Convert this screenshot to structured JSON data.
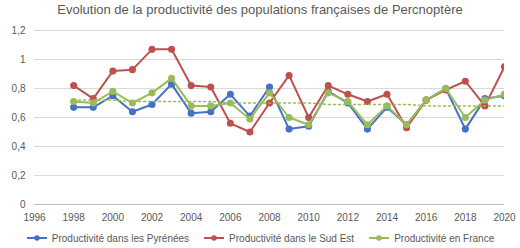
{
  "chart_data": {
    "type": "line",
    "title": "Evolution de la productivité des populations françaises de Percnoptère",
    "x": [
      1998,
      1999,
      2000,
      2001,
      2002,
      2003,
      2004,
      2005,
      2006,
      2007,
      2008,
      2009,
      2010,
      2011,
      2012,
      2013,
      2014,
      2015,
      2016,
      2017,
      2018,
      2019,
      2020
    ],
    "series": [
      {
        "name": "Productivité dans les Pyrénées",
        "color": "#4472c4",
        "marker": "circle",
        "values": [
          0.67,
          0.67,
          0.75,
          0.64,
          0.69,
          0.83,
          0.63,
          0.64,
          0.76,
          0.61,
          0.81,
          0.52,
          0.54,
          0.78,
          0.7,
          0.52,
          0.67,
          0.55,
          0.72,
          0.8,
          0.52,
          0.73,
          0.75
        ]
      },
      {
        "name": "Productivité dans le Sud Est",
        "color": "#c0504d",
        "marker": "circle",
        "values": [
          0.82,
          0.73,
          0.92,
          0.93,
          1.07,
          1.07,
          0.82,
          0.81,
          0.56,
          0.5,
          0.7,
          0.89,
          0.6,
          0.82,
          0.76,
          0.71,
          0.76,
          0.53,
          0.72,
          0.79,
          0.85,
          0.68,
          0.95
        ]
      },
      {
        "name": "Productivité en France",
        "color": "#9bbb59",
        "marker": "circle",
        "values": [
          0.71,
          0.7,
          0.78,
          0.7,
          0.77,
          0.87,
          0.68,
          0.68,
          0.7,
          0.59,
          0.77,
          0.6,
          0.55,
          0.77,
          0.71,
          0.55,
          0.68,
          0.55,
          0.72,
          0.8,
          0.6,
          0.72,
          0.76
        ]
      },
      {
        "color": "#9bbb59",
        "line_style": "dotted",
        "values": [
          0.72,
          0.72,
          0.72,
          0.71,
          0.71,
          0.71,
          0.71,
          0.71,
          0.7,
          0.7,
          0.7,
          0.7,
          0.7,
          0.69,
          0.69,
          0.69,
          0.69,
          0.69,
          0.68,
          0.68,
          0.68,
          0.68,
          0.68
        ]
      }
    ],
    "xlim": [
      1996,
      2020
    ],
    "xticks": [
      1996,
      1998,
      2000,
      2002,
      2004,
      2006,
      2008,
      2010,
      2012,
      2014,
      2016,
      2018,
      2020
    ],
    "ylim": [
      0,
      1.2
    ],
    "yticks": [
      0,
      {
        "value": 0.2,
        "label": "0,2"
      },
      {
        "value": 0.4,
        "label": "0,4"
      },
      {
        "value": 0.6,
        "label": "0,6"
      },
      {
        "value": 0.8,
        "label": "0,8"
      },
      1,
      {
        "value": 1.2,
        "label": "1,2"
      }
    ],
    "grid": true,
    "legend": "bottom"
  }
}
